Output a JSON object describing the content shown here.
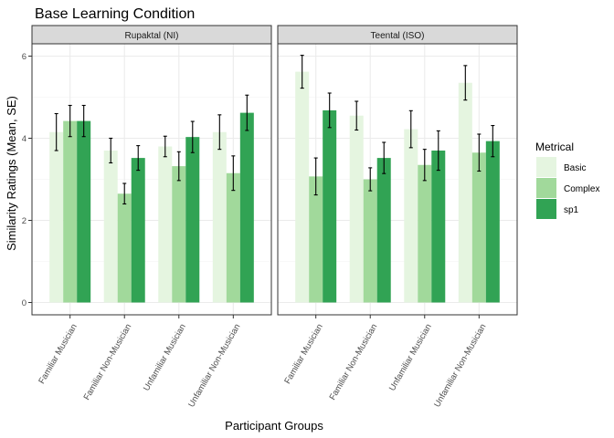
{
  "chart_data": {
    "type": "bar",
    "title": "Base Learning Condition",
    "xlabel": "Participant Groups",
    "ylabel": "Similarity Ratings (Mean, SE)",
    "ylim": [
      -0.3,
      6.3
    ],
    "yticks": [
      0,
      2,
      4,
      6
    ],
    "categories": [
      "Familiar Musician",
      "Familiar Non-Musician",
      "Unfamiliar Musician",
      "Unfamiliar Non-Musician"
    ],
    "legend": {
      "title": "Metrical",
      "position": "right",
      "entries": [
        {
          "name": "Basic",
          "color": "#e5f5e0"
        },
        {
          "name": "Complex",
          "color": "#a1d99b"
        },
        {
          "name": "sp1",
          "color": "#31a354"
        }
      ]
    },
    "grid": true,
    "panels": [
      {
        "label": "Rupaktal (NI)",
        "series": [
          {
            "name": "Basic",
            "values": [
              4.15,
              3.7,
              3.8,
              4.15
            ],
            "errors": [
              0.45,
              0.3,
              0.25,
              0.42
            ]
          },
          {
            "name": "Complex",
            "values": [
              4.42,
              2.65,
              3.32,
              3.15
            ],
            "errors": [
              0.38,
              0.25,
              0.35,
              0.42
            ]
          },
          {
            "name": "sp1",
            "values": [
              4.42,
              3.52,
              4.03,
              4.62
            ],
            "errors": [
              0.38,
              0.3,
              0.38,
              0.43
            ]
          }
        ]
      },
      {
        "label": "Teental (ISO)",
        "series": [
          {
            "name": "Basic",
            "values": [
              5.62,
              4.55,
              4.22,
              5.35
            ],
            "errors": [
              0.4,
              0.35,
              0.45,
              0.42
            ]
          },
          {
            "name": "Complex",
            "values": [
              3.07,
              3.0,
              3.35,
              3.65
            ],
            "errors": [
              0.45,
              0.28,
              0.38,
              0.45
            ]
          },
          {
            "name": "sp1",
            "values": [
              4.68,
              3.52,
              3.7,
              3.93
            ],
            "errors": [
              0.42,
              0.38,
              0.48,
              0.38
            ]
          }
        ]
      }
    ]
  }
}
